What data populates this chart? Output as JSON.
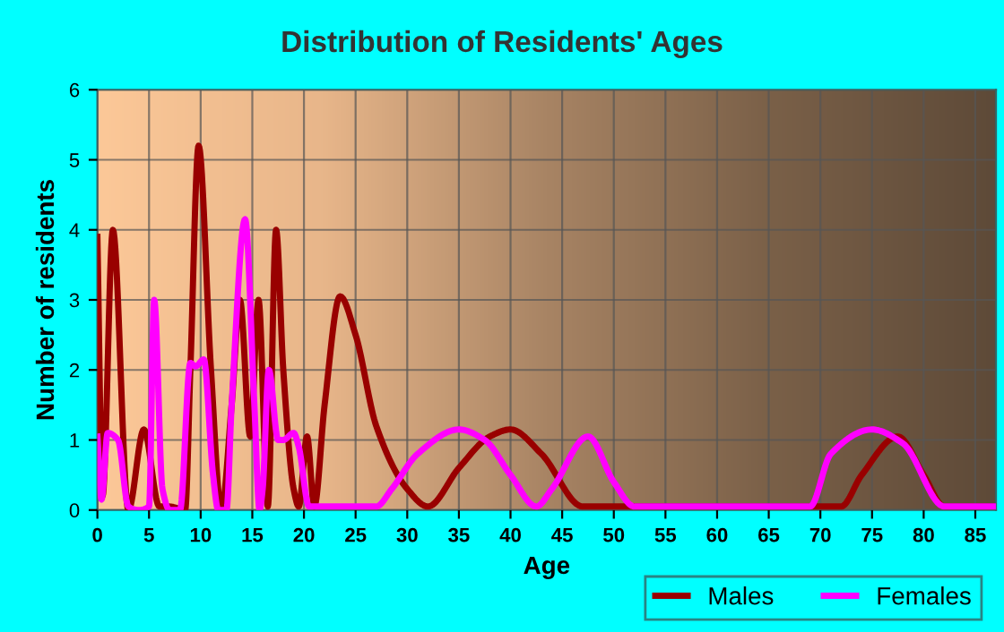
{
  "chart_data": {
    "type": "line",
    "title": "Distribution of Residents' Ages",
    "xlabel": "Age",
    "ylabel": "Number of residents",
    "xlim": [
      0,
      87
    ],
    "ylim": [
      0,
      6
    ],
    "xticks": [
      0,
      5,
      10,
      15,
      20,
      25,
      30,
      35,
      40,
      45,
      50,
      55,
      60,
      65,
      70,
      75,
      80,
      85
    ],
    "yticks": [
      0,
      1,
      2,
      3,
      4,
      5,
      6
    ],
    "grid": true,
    "legend": "bottom",
    "marker": "none",
    "line_style": "solid",
    "series": [
      {
        "name": "Males",
        "color": "#990000",
        "x": [
          0,
          0.5,
          1.5,
          3,
          4.5,
          6,
          7,
          8.5,
          9,
          9.8,
          11,
          12,
          13,
          13.8,
          14.8,
          15.6,
          16.5,
          17.3,
          18,
          19,
          19.5,
          20.3,
          21,
          22,
          23.5,
          25,
          27,
          30,
          32,
          35,
          38,
          40,
          43,
          47,
          52,
          60,
          70,
          72,
          74,
          77.5,
          80,
          82,
          87
        ],
        "values": [
          3.9,
          0.2,
          4.0,
          0,
          1.15,
          0.05,
          0.05,
          0,
          2,
          5.2,
          2,
          0,
          1.5,
          3.0,
          1.05,
          3.0,
          0.05,
          4.0,
          2,
          0.3,
          0.05,
          1.05,
          0.05,
          1.5,
          3.05,
          2.5,
          1.2,
          0.3,
          0.05,
          0.6,
          1.05,
          1.15,
          0.8,
          0.05,
          0.05,
          0.05,
          0.05,
          0.05,
          0.5,
          1.05,
          0.5,
          0.05,
          0.05
        ]
      },
      {
        "name": "Females",
        "color": "#ff00ff",
        "x": [
          0,
          0.4,
          1,
          2,
          3,
          4,
          5,
          5.5,
          6.3,
          7,
          8,
          9,
          9.5,
          10.3,
          11.2,
          11.7,
          12.5,
          13,
          14.3,
          15.2,
          15.7,
          16,
          16.6,
          17.5,
          18,
          19,
          19.5,
          20.5,
          25,
          27,
          28.5,
          31,
          35,
          37.5,
          40,
          42.5,
          44,
          47.5,
          50,
          52,
          60,
          69,
          71,
          75,
          78,
          82,
          87
        ],
        "values": [
          1.05,
          0.15,
          1.1,
          1.0,
          0.05,
          0,
          0.05,
          3.0,
          0.3,
          0,
          0,
          2.1,
          2.05,
          2.15,
          0.5,
          0,
          0,
          1.5,
          4.15,
          1.5,
          0,
          0.3,
          2.0,
          1.0,
          1.0,
          1.1,
          0.9,
          0.05,
          0.05,
          0.05,
          0.3,
          0.8,
          1.15,
          1.0,
          0.5,
          0.05,
          0.3,
          1.05,
          0.4,
          0.05,
          0.05,
          0.05,
          0.8,
          1.15,
          0.95,
          0.05,
          0.05
        ]
      }
    ]
  }
}
